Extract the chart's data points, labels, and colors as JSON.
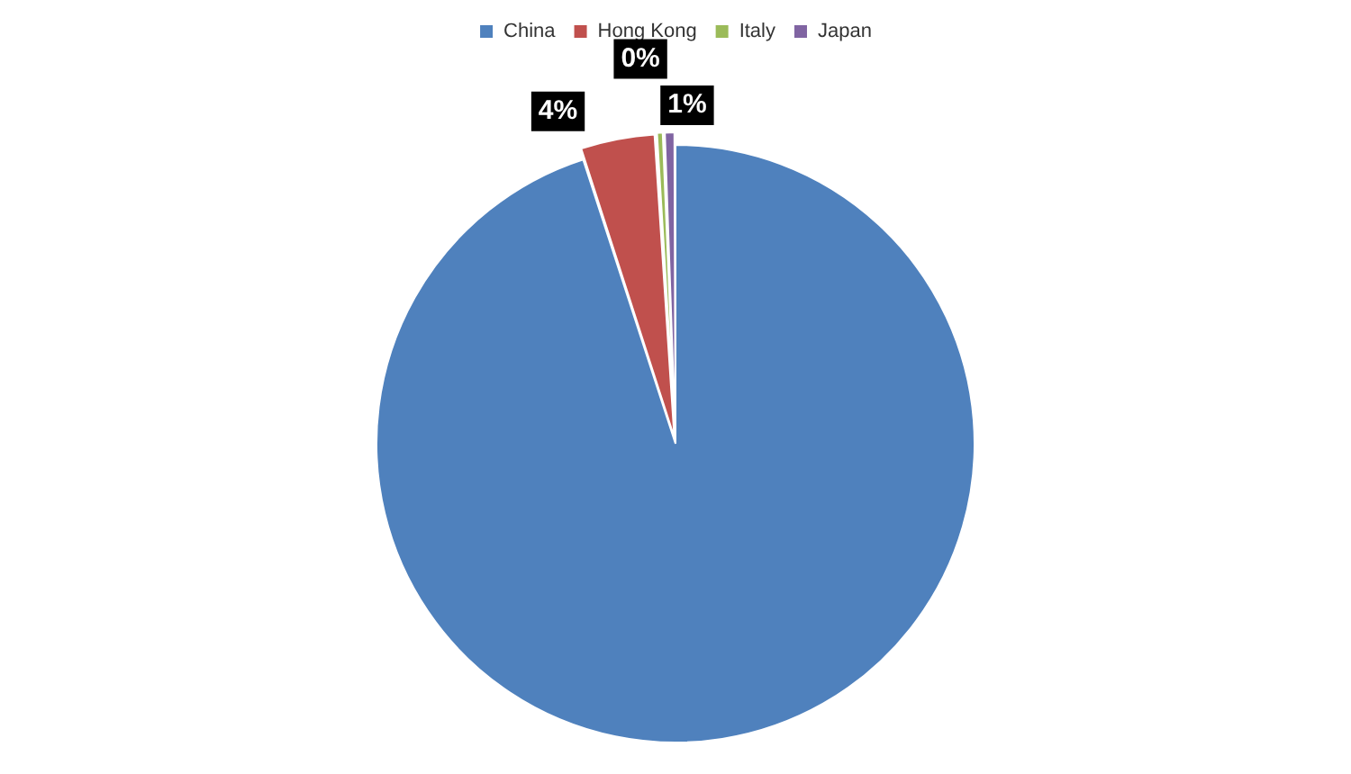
{
  "chart_data": {
    "type": "pie",
    "categories": [
      "China",
      "Hong Kong",
      "Italy",
      "Japan"
    ],
    "values": [
      95,
      4,
      0.4,
      0.6
    ],
    "colors": [
      "#4f81bd",
      "#c0504d",
      "#9bbb59",
      "#8064a2"
    ],
    "value_labels": [
      null,
      "4%",
      "0%",
      "1%"
    ],
    "legend": "top"
  }
}
